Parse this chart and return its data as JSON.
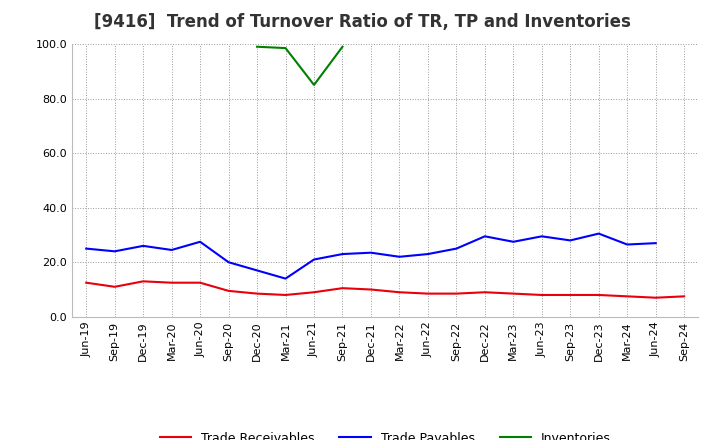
{
  "title": "[9416]  Trend of Turnover Ratio of TR, TP and Inventories",
  "ylim": [
    0.0,
    100.0
  ],
  "yticks": [
    0.0,
    20.0,
    40.0,
    60.0,
    80.0,
    100.0
  ],
  "x_labels": [
    "Jun-19",
    "Sep-19",
    "Dec-19",
    "Mar-20",
    "Jun-20",
    "Sep-20",
    "Dec-20",
    "Mar-21",
    "Jun-21",
    "Sep-21",
    "Dec-21",
    "Mar-22",
    "Jun-22",
    "Sep-22",
    "Dec-22",
    "Mar-23",
    "Jun-23",
    "Sep-23",
    "Dec-23",
    "Mar-24",
    "Jun-24",
    "Sep-24"
  ],
  "trade_receivables": [
    12.5,
    11.0,
    13.0,
    12.5,
    12.5,
    9.5,
    8.5,
    8.0,
    9.0,
    10.5,
    10.0,
    9.0,
    8.5,
    8.5,
    9.0,
    8.5,
    8.0,
    8.0,
    8.0,
    7.5,
    7.0,
    7.5
  ],
  "trade_payables": [
    25.0,
    24.0,
    26.0,
    24.5,
    27.5,
    20.0,
    17.0,
    14.0,
    21.0,
    23.0,
    23.5,
    22.0,
    23.0,
    25.0,
    29.5,
    27.5,
    29.5,
    28.0,
    30.5,
    26.5,
    27.0,
    null
  ],
  "inventories": [
    null,
    null,
    null,
    null,
    null,
    null,
    99.0,
    98.5,
    85.0,
    99.0,
    null,
    null,
    null,
    null,
    null,
    null,
    null,
    null,
    null,
    null,
    null,
    null
  ],
  "tr_color": "#e8000d",
  "tp_color": "#0000ff",
  "inv_color": "#008000",
  "background_color": "#ffffff",
  "grid_color": "#999999",
  "title_fontsize": 12,
  "legend_fontsize": 9,
  "tick_fontsize": 8
}
